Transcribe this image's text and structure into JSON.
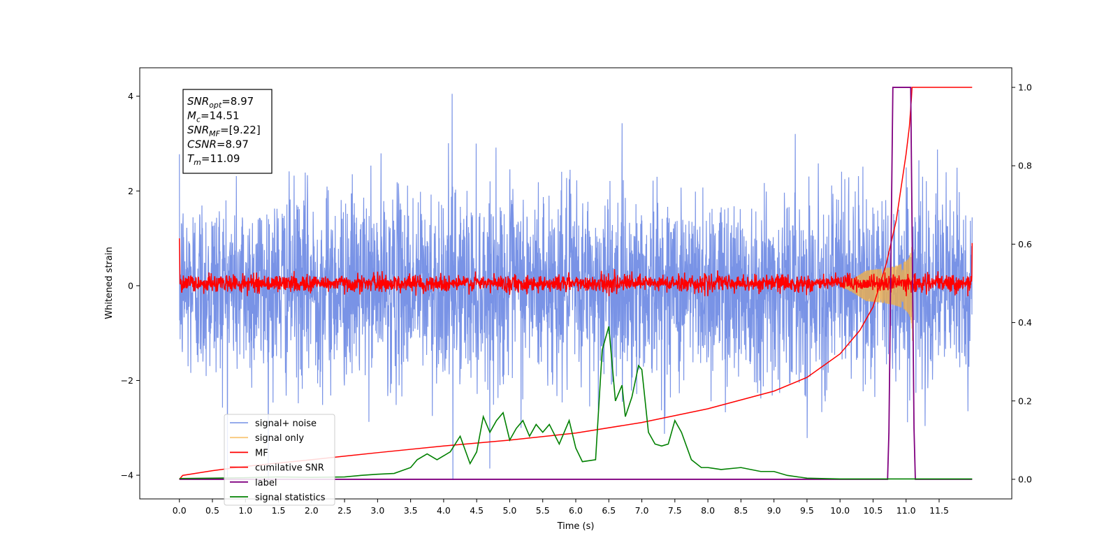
{
  "chart_data": {
    "type": "line",
    "title": "",
    "xlabel": "Time (s)",
    "ylabel": "Whitened strain",
    "xlim": [
      -0.6,
      12.6
    ],
    "ylim": [
      -4.5,
      4.6
    ],
    "y2lim": [
      -0.05,
      1.05
    ],
    "grid": false,
    "legend_position": "bottom-left",
    "x_ticks": [
      "0.0",
      "0.5",
      "1.0",
      "1.5",
      "2.0",
      "2.5",
      "3.0",
      "3.5",
      "4.0",
      "4.5",
      "5.0",
      "5.5",
      "6.0",
      "6.5",
      "7.0",
      "7.5",
      "8.0",
      "8.5",
      "9.0",
      "9.5",
      "10.0",
      "10.5",
      "11.0",
      "11.5"
    ],
    "y_ticks": [
      "4",
      "2",
      "0",
      "−2",
      "−4"
    ],
    "y2_ticks": [
      "1.0",
      "0.8",
      "0.6",
      "0.4",
      "0.2",
      "0.0"
    ],
    "annotation": {
      "lines": [
        {
          "base": "SNR",
          "sub": "opt",
          "value": "=8.97"
        },
        {
          "base": "M",
          "sub": "c",
          "value": "=14.51"
        },
        {
          "base": "SNR",
          "sub": "MF",
          "value": "=[9.22]"
        },
        {
          "base": "CSNR",
          "sub": "",
          "value": "=8.97"
        },
        {
          "base": "T",
          "sub": "m",
          "value": "=11.09"
        }
      ]
    },
    "series": [
      {
        "name": "signal+ noise",
        "axis": "left",
        "color": "#6a87e3",
        "kind": "noise",
        "x_range": [
          0.0,
          12.0
        ],
        "sigma": 1.0,
        "extreme": [
          -4.1,
          4.05
        ]
      },
      {
        "name": "signal only",
        "axis": "left",
        "color": "#f5b041",
        "kind": "chirp",
        "x_start": 10.0,
        "x_peak": 11.09,
        "peak_amplitude": 0.95
      },
      {
        "name": "MF",
        "axis": "left",
        "color": "#ff0000",
        "kind": "mf",
        "x_range": [
          0.0,
          12.0
        ],
        "level": 0.05,
        "spread": 0.3
      },
      {
        "name": "cumilative SNR",
        "axis": "right",
        "color": "#ff0000",
        "x": [
          0.0,
          0.05,
          0.5,
          1.0,
          2.0,
          3.0,
          4.0,
          5.0,
          6.0,
          7.0,
          8.0,
          9.0,
          9.5,
          10.0,
          10.3,
          10.5,
          10.7,
          10.85,
          11.0,
          11.05,
          11.08,
          11.09,
          11.1,
          11.15,
          11.5,
          12.0
        ],
        "values": [
          0.0,
          0.01,
          0.022,
          0.033,
          0.05,
          0.068,
          0.085,
          0.1,
          0.118,
          0.145,
          0.18,
          0.225,
          0.26,
          0.32,
          0.38,
          0.44,
          0.55,
          0.66,
          0.83,
          0.9,
          0.97,
          1.0,
          1.0,
          1.0,
          1.0,
          1.0
        ]
      },
      {
        "name": "label",
        "axis": "right",
        "color": "#800080",
        "x": [
          0.0,
          10.72,
          10.74,
          10.8,
          11.07,
          11.12,
          11.14,
          12.0
        ],
        "values": [
          0.0,
          0.0,
          0.12,
          1.0,
          1.0,
          0.13,
          0.0,
          0.0
        ]
      },
      {
        "name": "signal statistics",
        "axis": "right",
        "color": "#008000",
        "x": [
          0.0,
          0.5,
          1.0,
          1.5,
          2.0,
          2.5,
          2.75,
          3.0,
          3.25,
          3.5,
          3.6,
          3.75,
          3.9,
          4.0,
          4.1,
          4.25,
          4.4,
          4.5,
          4.6,
          4.7,
          4.8,
          4.9,
          5.0,
          5.1,
          5.2,
          5.3,
          5.4,
          5.5,
          5.6,
          5.75,
          5.9,
          6.0,
          6.1,
          6.3,
          6.4,
          6.5,
          6.6,
          6.7,
          6.75,
          6.85,
          6.95,
          7.0,
          7.1,
          7.2,
          7.3,
          7.4,
          7.5,
          7.6,
          7.75,
          7.9,
          8.0,
          8.2,
          8.5,
          8.8,
          9.0,
          9.2,
          9.5,
          10.0,
          11.0,
          12.0
        ],
        "values": [
          0.002,
          0.003,
          0.004,
          0.006,
          0.005,
          0.006,
          0.01,
          0.013,
          0.015,
          0.03,
          0.05,
          0.065,
          0.05,
          0.06,
          0.07,
          0.11,
          0.04,
          0.07,
          0.16,
          0.12,
          0.15,
          0.17,
          0.1,
          0.13,
          0.15,
          0.11,
          0.14,
          0.12,
          0.14,
          0.09,
          0.15,
          0.08,
          0.045,
          0.05,
          0.33,
          0.39,
          0.2,
          0.24,
          0.16,
          0.21,
          0.29,
          0.28,
          0.12,
          0.09,
          0.085,
          0.09,
          0.15,
          0.12,
          0.05,
          0.03,
          0.03,
          0.025,
          0.03,
          0.02,
          0.02,
          0.01,
          0.003,
          0.001,
          0.001,
          0.001
        ]
      }
    ]
  }
}
